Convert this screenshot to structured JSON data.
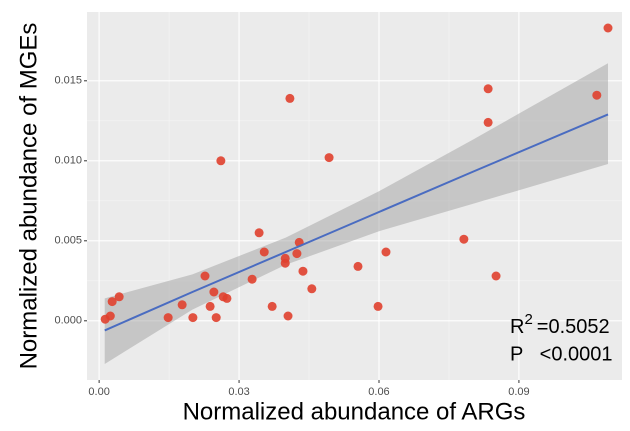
{
  "chart_data": {
    "type": "scatter",
    "x_label": "Normalized abundance of ARGs",
    "y_label": "Normalized abundance of MGEs",
    "xlim": [
      -0.0026,
      0.1121
    ],
    "ylim": [
      -0.0037,
      0.0193
    ],
    "xticks": [
      {
        "value": 0,
        "label": "0.00"
      },
      0.03,
      0.06,
      0.09
    ],
    "yticks": [
      {
        "value": 0,
        "label": "0.000"
      },
      0.005,
      {
        "value": 0.01,
        "label": "0.010"
      },
      0.015
    ],
    "grid": true,
    "series": [
      {
        "color": "#e0402e",
        "x": [
          0.0013,
          0.0024,
          0.0028,
          0.0043,
          0.0148,
          0.0178,
          0.0201,
          0.0227,
          0.0238,
          0.0246,
          0.0251,
          0.0266,
          0.0274,
          0.0261,
          0.0328,
          0.0343,
          0.0354,
          0.0371,
          0.0399,
          0.0399,
          0.0405,
          0.0409,
          0.0424,
          0.0429,
          0.0437,
          0.0456,
          0.0493,
          0.0555,
          0.0598,
          0.0615,
          0.0782,
          0.0834,
          0.0834,
          0.0851,
          0.1067,
          0.1091
        ],
        "values": [
          0.0001,
          0.0003,
          0.0012,
          0.0015,
          0.0002,
          0.001,
          0.0002,
          0.0028,
          0.0009,
          0.0018,
          0.0002,
          0.0015,
          0.0014,
          0.01,
          0.0026,
          0.0055,
          0.0043,
          0.0009,
          0.0036,
          0.0039,
          0.0003,
          0.0139,
          0.0042,
          0.0049,
          0.0031,
          0.002,
          0.0102,
          0.0034,
          0.0009,
          0.0043,
          0.0051,
          0.0145,
          0.0124,
          0.0028,
          0.0141,
          0.0183
        ]
      }
    ],
    "fit": {
      "color": "#4a6cc1",
      "band_color": "#999999",
      "x": [
        0.0012,
        0.02,
        0.04,
        0.06,
        0.08,
        0.1091
      ],
      "values": [
        -0.0006,
        0.0018,
        0.0043,
        0.0068,
        0.0093,
        0.0129
      ],
      "lower": [
        -0.0027,
        0.0007,
        0.0035,
        0.0056,
        0.0073,
        0.0098
      ],
      "upper": [
        0.0014,
        0.0029,
        0.0052,
        0.0081,
        0.0113,
        0.0161
      ]
    },
    "annotations": [
      {
        "base": "R",
        "sup": "2",
        "text": "=0.5052"
      },
      {
        "text": "P   <0.0001"
      }
    ]
  }
}
